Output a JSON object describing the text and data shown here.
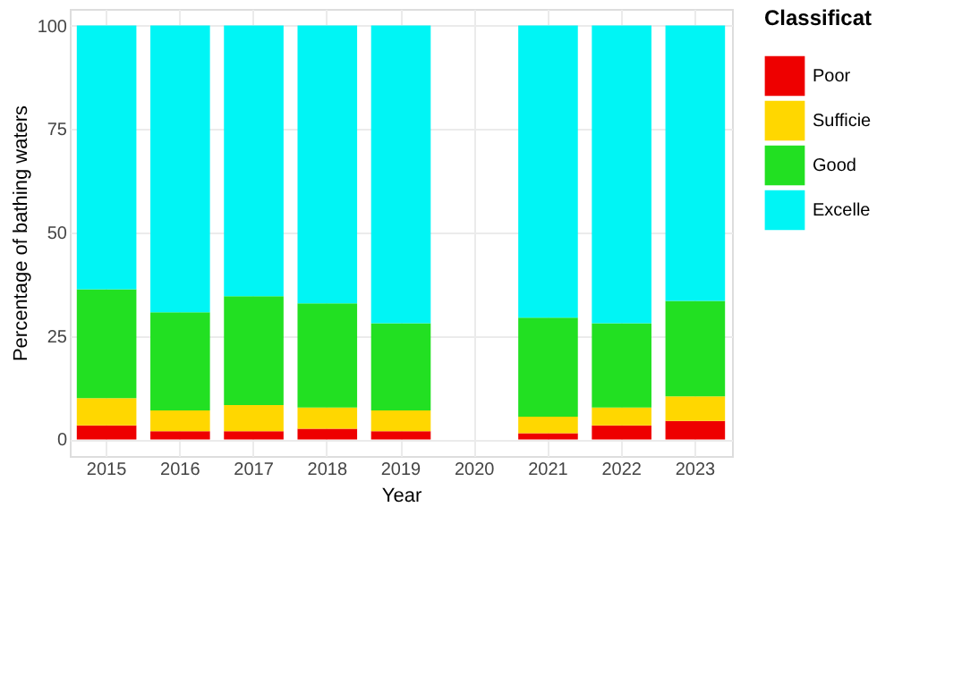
{
  "chart_data": {
    "type": "bar",
    "stacked": true,
    "xlabel": "Year",
    "ylabel": "Percentage of bathing waters",
    "legend_title": "Classificat",
    "categories": [
      "2015",
      "2016",
      "2017",
      "2018",
      "2019",
      "2020",
      "2021",
      "2022",
      "2023"
    ],
    "series": [
      {
        "name": "Poor",
        "color": "#ee0000",
        "values": [
          3.4,
          2.0,
          2.0,
          2.6,
          2.0,
          null,
          1.5,
          3.4,
          4.5
        ]
      },
      {
        "name": "Sufficie",
        "color": "#ffd700",
        "values": [
          6.6,
          5.0,
          6.3,
          5.1,
          5.0,
          null,
          4.0,
          4.3,
          5.9
        ]
      },
      {
        "name": "Good",
        "color": "#22e022",
        "values": [
          26.3,
          23.7,
          26.3,
          25.2,
          21.1,
          null,
          23.9,
          20.4,
          23.1
        ]
      },
      {
        "name": "Excelle",
        "color": "#00f5f5",
        "values": [
          63.7,
          69.3,
          65.4,
          67.1,
          71.9,
          null,
          70.6,
          71.9,
          66.5
        ]
      }
    ],
    "ylim": [
      -4,
      104
    ],
    "yticks": [
      0,
      25,
      50,
      75,
      100
    ],
    "grid": true,
    "legend": "right"
  }
}
